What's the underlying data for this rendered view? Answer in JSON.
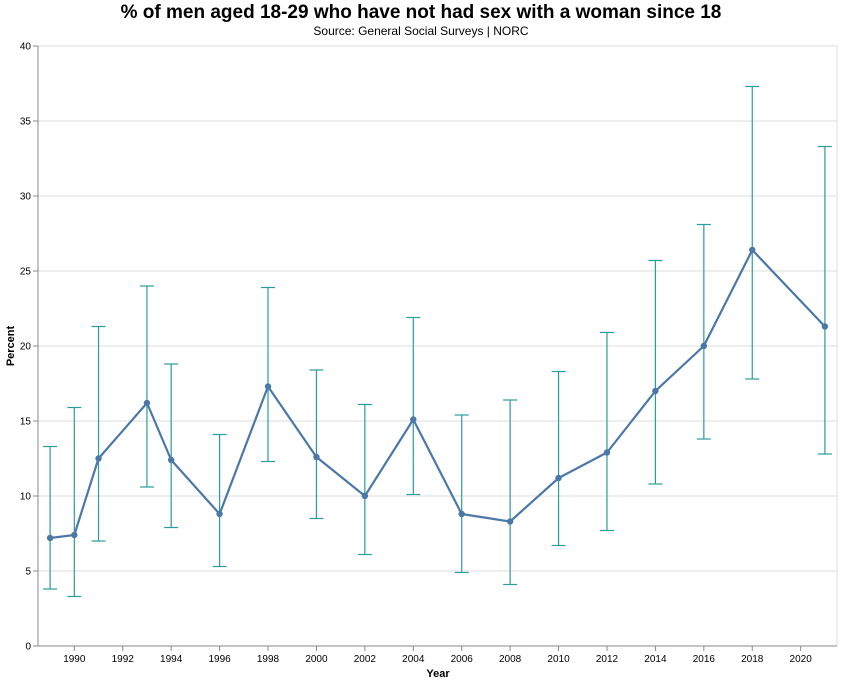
{
  "chart_data": {
    "type": "line",
    "title": "% of men aged 18-29 who have not had sex with a woman since 18",
    "subtitle": "Source: General Social Surveys | NORC",
    "xlabel": "Year",
    "ylabel": "Percent",
    "xlim": [
      1988.5,
      2021.5
    ],
    "ylim": [
      0,
      40
    ],
    "x_ticks": [
      1990,
      1992,
      1994,
      1996,
      1998,
      2000,
      2002,
      2004,
      2006,
      2008,
      2010,
      2012,
      2014,
      2016,
      2018,
      2020
    ],
    "y_ticks": [
      0,
      5,
      10,
      15,
      20,
      25,
      30,
      35,
      40
    ],
    "grid": "horizontal",
    "series": [
      {
        "color": "#4c78a8",
        "x": [
          1989,
          1990,
          1991,
          1993,
          1994,
          1996,
          1998,
          2000,
          2002,
          2004,
          2006,
          2008,
          2010,
          2012,
          2014,
          2016,
          2018,
          2021
        ],
        "values": [
          7.2,
          7.4,
          12.5,
          16.2,
          12.4,
          8.8,
          17.3,
          12.6,
          10.0,
          15.1,
          8.8,
          8.3,
          11.2,
          12.9,
          17.0,
          20.0,
          26.4,
          21.3
        ],
        "lower": [
          3.8,
          3.3,
          7.0,
          10.6,
          7.9,
          5.3,
          12.3,
          8.5,
          6.1,
          10.1,
          4.9,
          4.1,
          6.7,
          7.7,
          10.8,
          13.8,
          17.8,
          12.8
        ],
        "upper": [
          13.3,
          15.9,
          21.3,
          24.0,
          18.8,
          14.1,
          23.9,
          18.4,
          16.1,
          21.9,
          15.4,
          16.4,
          18.3,
          20.9,
          25.7,
          28.1,
          37.3,
          33.3
        ]
      }
    ],
    "errorbar_color": "#2a9d9a"
  }
}
